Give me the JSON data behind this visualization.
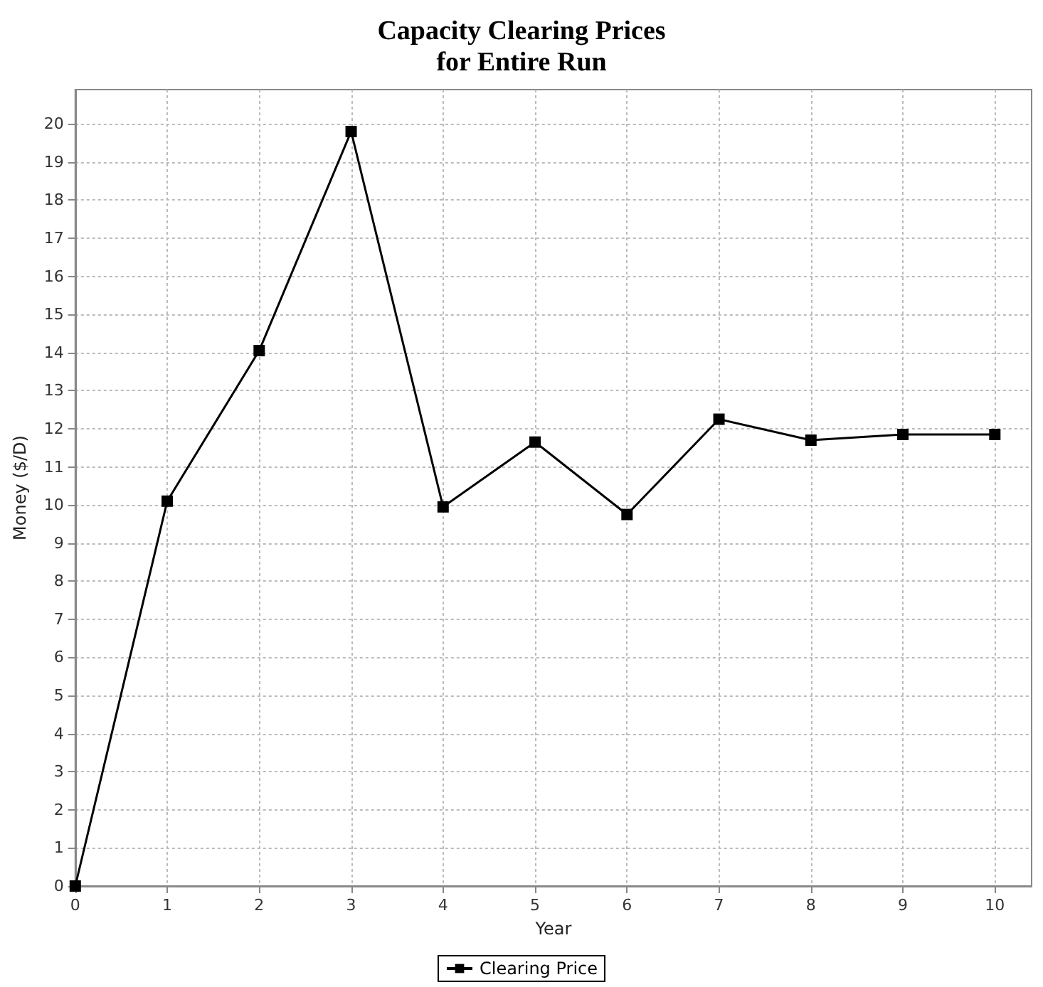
{
  "chart_data": {
    "type": "line",
    "title": "Capacity Clearing Prices\nfor Entire Run",
    "xlabel": "Year",
    "ylabel": "Money ($/D)",
    "x": [
      0,
      1,
      2,
      3,
      4,
      5,
      6,
      7,
      8,
      9,
      10
    ],
    "series": [
      {
        "name": "Clearing Price",
        "color": "#000000",
        "values": [
          0,
          10.1,
          14.05,
          19.8,
          9.95,
          11.65,
          9.75,
          12.25,
          11.7,
          11.85,
          11.85
        ]
      }
    ],
    "xlim": [
      0,
      10.4
    ],
    "xticks": [
      0,
      1,
      2,
      3,
      4,
      5,
      6,
      7,
      8,
      9,
      10
    ],
    "ylim": [
      0,
      20.9
    ],
    "yticks": [
      0,
      1,
      2,
      3,
      4,
      5,
      6,
      7,
      8,
      9,
      10,
      11,
      12,
      13,
      14,
      15,
      16,
      17,
      18,
      19,
      20
    ],
    "grid": true,
    "legend": "bottom",
    "marker": "square",
    "line_style": "solid"
  }
}
